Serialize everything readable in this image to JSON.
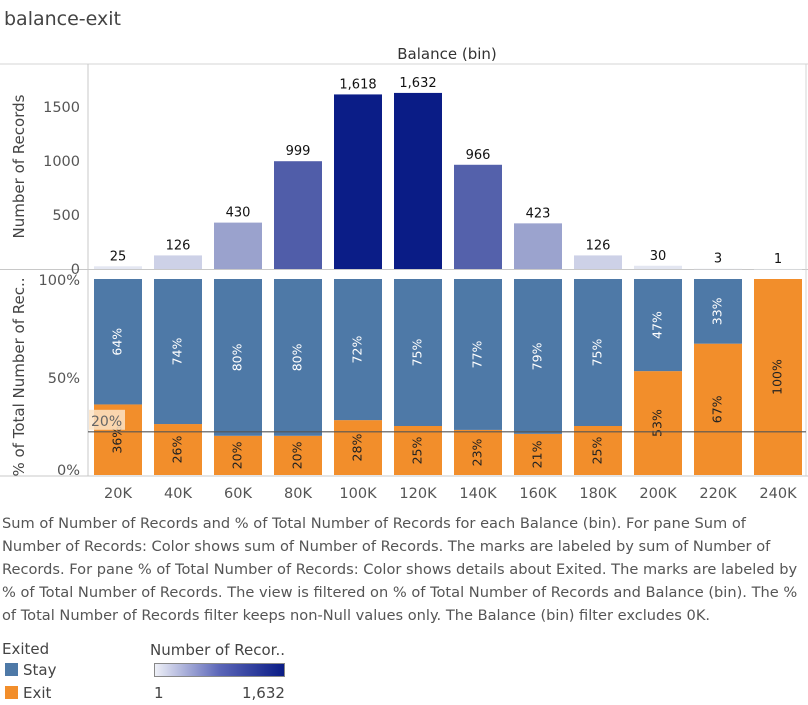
{
  "sheet_title": "balance-exit",
  "description": "Sum of Number of Records and % of Total Number of Records for each Balance (bin).  For pane Sum of Number of Records:  Color shows sum of Number of Records.  The marks are labeled by sum of Number of Records.  For pane % of Total Number of Records:  Color shows details about Exited.  The marks are labeled by % of Total Number of Records. The view is filtered on % of Total Number of Records and Balance (bin). The % of Total Number of Records filter keeps non-Null values only. The Balance (bin) filter excludes 0K.",
  "legend_exited": {
    "title": "Exited",
    "items": [
      {
        "label": "Stay",
        "color": "#4e79a7"
      },
      {
        "label": "Exit",
        "color": "#f28e2b"
      }
    ]
  },
  "legend_records": {
    "title": "Number of Recor..",
    "min_label": "1",
    "max_label": "1,632"
  },
  "chart_data": [
    {
      "type": "bar",
      "column_header": "Balance (bin)",
      "ylabel": "Number of Records",
      "ylim": [
        0,
        1900
      ],
      "yticks": [
        "0",
        "500",
        "1000",
        "1500"
      ],
      "ytick_values": [
        0,
        500,
        1000,
        1500
      ],
      "categories": [
        "20K",
        "40K",
        "60K",
        "80K",
        "100K",
        "120K",
        "140K",
        "160K",
        "180K",
        "200K",
        "220K",
        "240K"
      ],
      "values": [
        25,
        126,
        430,
        999,
        1618,
        1632,
        966,
        423,
        126,
        30,
        3,
        1
      ],
      "value_labels": [
        "25",
        "126",
        "430",
        "999",
        "1,618",
        "1,632",
        "966",
        "423",
        "126",
        "30",
        "3",
        "1"
      ],
      "color_scale": [
        "#eef0f7",
        "#0a1c86"
      ]
    },
    {
      "type": "bar",
      "stacked": true,
      "ylabel": "% of Total Number of Rec..",
      "ylim": [
        0,
        100
      ],
      "yticks": [
        "0%",
        "50%",
        "100%"
      ],
      "ytick_values": [
        0,
        50,
        100
      ],
      "reference_line": {
        "value": 20,
        "label": "20%"
      },
      "categories": [
        "20K",
        "40K",
        "60K",
        "80K",
        "100K",
        "120K",
        "140K",
        "160K",
        "180K",
        "200K",
        "220K",
        "240K"
      ],
      "series": [
        {
          "name": "Stay",
          "color": "#4e79a7",
          "values": [
            64,
            74,
            80,
            80,
            72,
            75,
            77,
            79,
            75,
            47,
            33,
            0
          ],
          "labels": [
            "64%",
            "74%",
            "80%",
            "80%",
            "72%",
            "75%",
            "77%",
            "79%",
            "75%",
            "47%",
            "33%",
            ""
          ]
        },
        {
          "name": "Exit",
          "color": "#f28e2b",
          "values": [
            36,
            26,
            20,
            20,
            28,
            25,
            23,
            21,
            25,
            53,
            67,
            100
          ],
          "labels": [
            "36%",
            "26%",
            "20%",
            "20%",
            "28%",
            "25%",
            "23%",
            "21%",
            "25%",
            "53%",
            "67%",
            "100%"
          ]
        }
      ]
    }
  ]
}
